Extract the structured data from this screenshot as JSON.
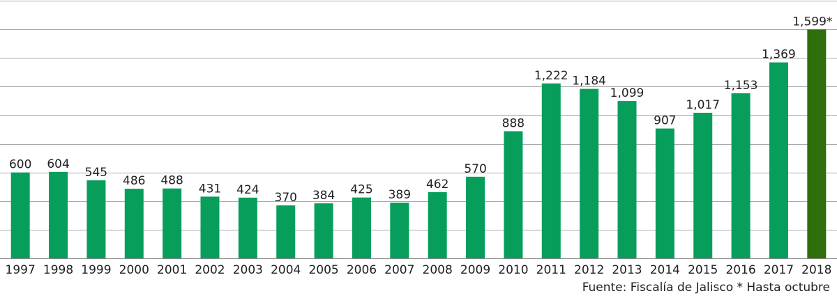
{
  "chart_data": {
    "type": "bar",
    "categories": [
      "1997",
      "1998",
      "1999",
      "2000",
      "2001",
      "2002",
      "2003",
      "2004",
      "2005",
      "2006",
      "2007",
      "2008",
      "2009",
      "2010",
      "2011",
      "2012",
      "2013",
      "2014",
      "2015",
      "2016",
      "2017",
      "2018"
    ],
    "values": [
      600,
      604,
      545,
      486,
      488,
      431,
      424,
      370,
      384,
      425,
      389,
      462,
      570,
      888,
      1222,
      1184,
      1099,
      907,
      1017,
      1153,
      1369,
      1599
    ],
    "data_labels": [
      "600",
      "604",
      "545",
      "486",
      "488",
      "431",
      "424",
      "370",
      "384",
      "425",
      "389",
      "462",
      "570",
      "888",
      "1,222",
      "1,184",
      "1,099",
      "907",
      "1,017",
      "1,153",
      "1,369",
      "1,599*"
    ],
    "title": "",
    "xlabel": "",
    "ylabel": "",
    "ylim": [
      0,
      1800
    ],
    "grid": true,
    "gridlines_every": 200,
    "bar_color": "#079E5C",
    "highlight_index": 21,
    "highlight_color": "#2E6E0C"
  },
  "footer": {
    "source_note": "Fuente: Fiscalía de Jalisco * Hasta octubre"
  }
}
